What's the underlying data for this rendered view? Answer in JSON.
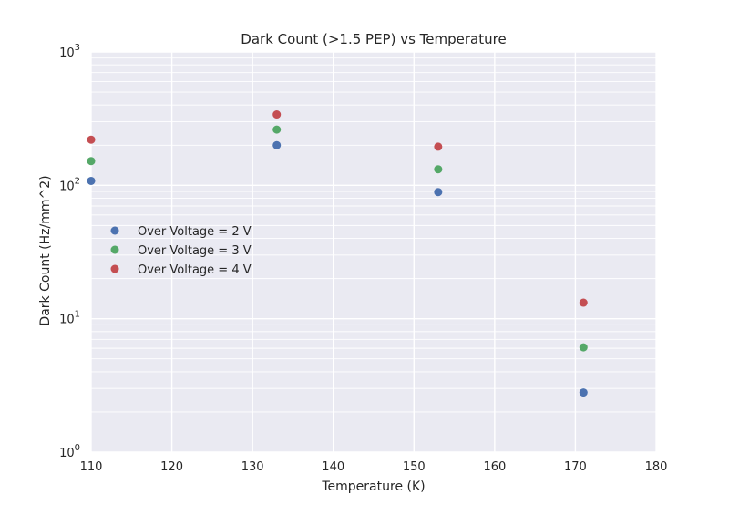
{
  "chart_data": {
    "type": "scatter",
    "title": "Dark Count (>1.5 PEP) vs Temperature",
    "xlabel": "Temperature (K)",
    "ylabel": "Dark Count (Hz/mm^2)",
    "xlim": [
      110,
      180
    ],
    "ylim": [
      1,
      1000
    ],
    "yscale": "log",
    "grid": true,
    "legend_position": "center-left",
    "background_color": "#EAEAF2",
    "grid_color": "#ffffff",
    "x_ticks": [
      {
        "value": 110,
        "label": "110"
      },
      {
        "value": 120,
        "label": "120"
      },
      {
        "value": 130,
        "label": "130"
      },
      {
        "value": 140,
        "label": "140"
      },
      {
        "value": 150,
        "label": "150"
      },
      {
        "value": 160,
        "label": "160"
      },
      {
        "value": 170,
        "label": "170"
      },
      {
        "value": 180,
        "label": "180"
      }
    ],
    "y_ticks": [
      {
        "value": 1,
        "base": "10",
        "exp": "0"
      },
      {
        "value": 10,
        "base": "10",
        "exp": "1"
      },
      {
        "value": 100,
        "base": "10",
        "exp": "2"
      },
      {
        "value": 1000,
        "base": "10",
        "exp": "3"
      }
    ],
    "series": [
      {
        "name": "Over Voltage = 2 V",
        "color": "#4C72B0",
        "points": [
          [
            110,
            108
          ],
          [
            133,
            200
          ],
          [
            153,
            89
          ],
          [
            171,
            2.8
          ]
        ]
      },
      {
        "name": "Over Voltage = 3 V",
        "color": "#55A868",
        "points": [
          [
            110,
            152
          ],
          [
            133,
            262
          ],
          [
            153,
            132
          ],
          [
            171,
            6.1
          ]
        ]
      },
      {
        "name": "Over Voltage = 4 V",
        "color": "#C44E52",
        "points": [
          [
            110,
            220
          ],
          [
            133,
            340
          ],
          [
            153,
            195
          ],
          [
            171,
            13.2
          ]
        ]
      }
    ]
  }
}
